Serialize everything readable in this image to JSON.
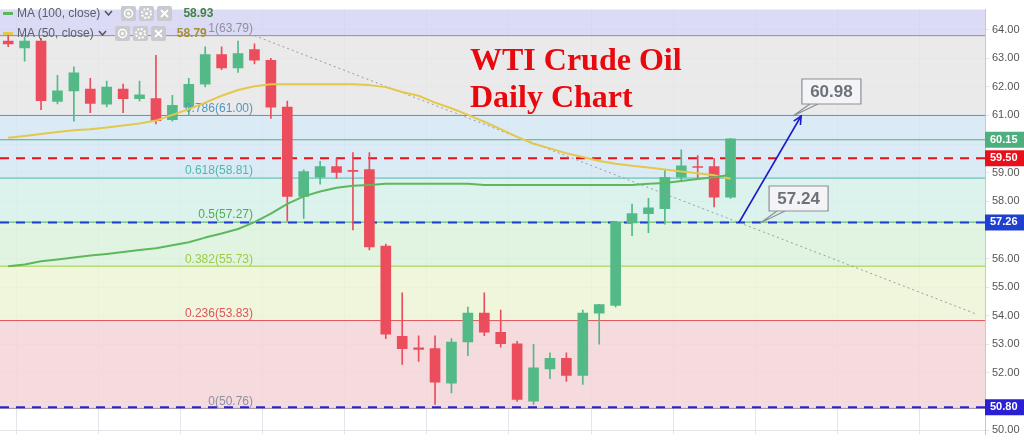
{
  "chart_data": {
    "type": "candlestick",
    "title": "WTI Crude Oil Daily Chart",
    "categories": [
      null,
      null,
      null,
      null,
      null,
      null,
      null,
      null,
      null,
      null,
      null,
      null,
      null,
      null,
      null,
      null,
      null,
      null,
      null,
      null,
      null,
      null,
      null,
      null,
      null,
      null,
      null,
      null,
      null,
      null,
      null,
      null,
      null,
      null,
      null,
      null,
      null,
      null,
      null,
      null,
      null,
      null,
      null,
      null,
      null,
      null,
      null,
      null,
      null,
      null,
      null,
      null,
      null,
      null,
      null,
      null,
      null,
      null,
      null,
      null
    ],
    "ohlc": [
      [
        63.6,
        63.9,
        63.4,
        63.5
      ],
      [
        63.36,
        63.75,
        62.9,
        63.6
      ],
      [
        63.6,
        63.7,
        61.2,
        61.52
      ],
      [
        61.49,
        62.4,
        61.4,
        61.86
      ],
      [
        61.86,
        62.7,
        60.8,
        62.49
      ],
      [
        61.92,
        62.3,
        61.1,
        61.42
      ],
      [
        61.39,
        62.2,
        61.3,
        61.99
      ],
      [
        61.92,
        62.1,
        61.1,
        61.59
      ],
      [
        61.59,
        62.2,
        61.5,
        61.72
      ],
      [
        61.59,
        63.1,
        60.7,
        60.82
      ],
      [
        60.85,
        61.7,
        60.8,
        61.35
      ],
      [
        61.29,
        62.3,
        61.0,
        62.09
      ],
      [
        62.09,
        63.4,
        62.0,
        63.13
      ],
      [
        63.13,
        63.4,
        62.6,
        62.66
      ],
      [
        62.66,
        63.6,
        62.5,
        63.16
      ],
      [
        63.3,
        63.5,
        62.8,
        62.93
      ],
      [
        62.93,
        63.0,
        60.9,
        61.29
      ],
      [
        61.29,
        61.5,
        57.3,
        58.17
      ],
      [
        58.17,
        59.1,
        57.4,
        59.04
      ],
      [
        58.84,
        59.4,
        58.6,
        59.21
      ],
      [
        59.21,
        59.5,
        58.8,
        59.01
      ],
      [
        59.08,
        59.7,
        57.0,
        59.04
      ],
      [
        59.11,
        59.7,
        56.3,
        56.4
      ],
      [
        56.43,
        56.5,
        53.2,
        53.35
      ],
      [
        53.28,
        54.8,
        52.3,
        52.85
      ],
      [
        52.88,
        53.3,
        52.4,
        52.82
      ],
      [
        52.85,
        53.3,
        50.9,
        51.68
      ],
      [
        51.64,
        53.2,
        51.3,
        53.08
      ],
      [
        53.08,
        54.3,
        52.6,
        54.09
      ],
      [
        54.09,
        54.8,
        53.3,
        53.42
      ],
      [
        53.42,
        54.2,
        52.9,
        53.02
      ],
      [
        53.02,
        53.1,
        51.0,
        51.07
      ],
      [
        51.01,
        53.0,
        50.9,
        52.18
      ],
      [
        52.14,
        52.7,
        51.8,
        52.51
      ],
      [
        52.51,
        52.7,
        51.7,
        51.91
      ],
      [
        51.91,
        54.2,
        51.6,
        54.09
      ],
      [
        54.09,
        54.4,
        53.0,
        54.39
      ],
      [
        54.36,
        57.3,
        54.3,
        57.27
      ],
      [
        57.24,
        57.9,
        56.8,
        57.57
      ],
      [
        57.57,
        58.1,
        56.9,
        57.77
      ],
      [
        57.74,
        59.1,
        57.2,
        58.84
      ],
      [
        58.84,
        59.8,
        58.7,
        59.24
      ],
      [
        59.21,
        59.6,
        58.8,
        59.18
      ],
      [
        59.21,
        59.5,
        57.8,
        58.14
      ],
      [
        58.14,
        60.2,
        58.1,
        60.18
      ],
      null,
      null,
      null,
      null,
      null,
      null,
      null,
      null,
      null,
      null,
      null,
      null,
      null,
      null,
      null
    ],
    "colors": [
      "#eb4d5c",
      "#53b987",
      "#eb4d5c",
      "#53b987",
      "#53b987",
      "#eb4d5c",
      "#53b987",
      "#eb4d5c",
      "#53b987",
      "#eb4d5c",
      "#53b987",
      "#53b987",
      "#53b987",
      "#eb4d5c",
      "#53b987",
      "#eb4d5c",
      "#eb4d5c",
      "#eb4d5c",
      "#53b987",
      "#53b987",
      "#eb4d5c",
      "#eb4d5c",
      "#eb4d5c",
      "#eb4d5c",
      "#eb4d5c",
      "#eb4d5c",
      "#eb4d5c",
      "#53b987",
      "#53b987",
      "#eb4d5c",
      "#eb4d5c",
      "#eb4d5c",
      "#53b987",
      "#53b987",
      "#eb4d5c",
      "#53b987",
      "#53b987",
      "#53b987",
      "#53b987",
      "#53b987",
      "#53b987",
      "#53b987",
      "#eb4d5c",
      "#eb4d5c",
      "#53b987",
      null,
      null,
      null,
      null,
      null,
      null,
      null,
      null,
      null,
      null,
      null,
      null,
      null,
      null,
      null
    ],
    "series": [
      {
        "name": "MA (100, close)",
        "type": "line",
        "color": "#5cb85c",
        "values": [
          55.73,
          55.79,
          55.9,
          55.96,
          56.03,
          56.1,
          56.16,
          56.23,
          56.3,
          56.36,
          56.46,
          56.57,
          56.73,
          56.87,
          57.03,
          57.27,
          57.57,
          57.91,
          58.17,
          58.34,
          58.47,
          58.54,
          58.57,
          58.61,
          58.61,
          58.61,
          58.61,
          58.61,
          58.61,
          58.57,
          58.57,
          58.57,
          58.57,
          58.57,
          58.57,
          58.57,
          58.57,
          58.57,
          58.57,
          58.61,
          58.64,
          58.71,
          58.78,
          58.84,
          58.93,
          null,
          null,
          null,
          null,
          null,
          null,
          null,
          null,
          null,
          null,
          null,
          null,
          null,
          null,
          null
        ]
      },
      {
        "name": "MA (50, close)",
        "type": "line",
        "color": "#e3c84a",
        "values": [
          60.22,
          60.28,
          60.35,
          60.42,
          60.48,
          60.52,
          60.58,
          60.65,
          60.72,
          60.82,
          61.02,
          61.22,
          61.45,
          61.69,
          61.89,
          62.02,
          62.09,
          62.09,
          62.09,
          62.09,
          62.09,
          62.09,
          62.06,
          61.99,
          61.82,
          61.69,
          61.45,
          61.25,
          61.02,
          60.78,
          60.52,
          60.25,
          60.01,
          59.85,
          59.68,
          59.55,
          59.41,
          59.31,
          59.24,
          59.18,
          59.11,
          59.04,
          58.98,
          58.91,
          58.79,
          null,
          null,
          null,
          null,
          null,
          null,
          null,
          null,
          null,
          null,
          null,
          null,
          null,
          null,
          null
        ]
      },
      {
        "type": "line",
        "color": "#9a9aa8",
        "line_style": "dotted",
        "values": [
          null,
          null,
          null,
          null,
          null,
          null,
          null,
          null,
          null,
          null,
          null,
          null,
          null,
          null,
          null,
          63.79,
          null,
          null,
          null,
          null,
          null,
          null,
          null,
          null,
          null,
          null,
          null,
          null,
          null,
          null,
          null,
          null,
          null,
          null,
          null,
          null,
          null,
          null,
          null,
          null,
          null,
          null,
          null,
          null,
          null,
          null,
          null,
          null,
          null,
          null,
          null,
          null,
          null,
          null,
          null,
          null,
          null,
          null,
          null,
          54.05
        ]
      }
    ],
    "ylim": [
      49.85,
      64.7
    ],
    "yticks": [
      {
        "value": 50,
        "label": "50.00"
      },
      {
        "value": 51,
        "label": null
      },
      {
        "value": 52,
        "label": "52.00"
      },
      {
        "value": 53,
        "label": "53.00"
      },
      {
        "value": 54,
        "label": "54.00"
      },
      {
        "value": 55,
        "label": "55.00"
      },
      {
        "value": 56,
        "label": "56.00"
      },
      {
        "value": 57,
        "label": null
      },
      {
        "value": 58,
        "label": "58.00"
      },
      {
        "value": 59,
        "label": "59.00"
      },
      {
        "value": 60,
        "label": null
      },
      {
        "value": 61,
        "label": "61.00"
      },
      {
        "value": 62,
        "label": "62.00"
      },
      {
        "value": 63,
        "label": "63.00"
      },
      {
        "value": 64,
        "label": "64.00"
      }
    ],
    "grid": true,
    "legend": "top left",
    "tick_labels": "y",
    "bands": [
      {
        "axis": "y",
        "from": 63.79,
        "to": 64.7,
        "color": "#d6d5f4"
      },
      {
        "axis": "y",
        "from": 61.0,
        "to": 63.79,
        "color": "#e6e6e8"
      },
      {
        "axis": "y",
        "from": 58.81,
        "to": 61.0,
        "color": "#d4e8f5"
      },
      {
        "axis": "y",
        "from": 57.27,
        "to": 58.81,
        "color": "#d6f1ea"
      },
      {
        "axis": "y",
        "from": 55.73,
        "to": 57.27,
        "color": "#dcf2dc"
      },
      {
        "axis": "y",
        "from": 53.83,
        "to": 55.73,
        "color": "#ecf4d6"
      },
      {
        "axis": "y",
        "from": 50.76,
        "to": 53.83,
        "color": "#f4d5d8"
      }
    ],
    "ref_lines": [
      {
        "axis": "y",
        "value": 63.79,
        "label": "1(63.79)",
        "color": "#8f8fa0"
      },
      {
        "axis": "y",
        "value": 61.0,
        "label": "0.786(61.00)",
        "color": "#4f97c4"
      },
      {
        "axis": "y",
        "value": 58.81,
        "label": "0.618(58.81)",
        "color": "#4fb8ad"
      },
      {
        "axis": "y",
        "value": 57.27,
        "label": "0.5(57.27)",
        "color": "#4caf50"
      },
      {
        "axis": "y",
        "value": 55.73,
        "label": "0.382(55.73)",
        "color": "#9ccc45"
      },
      {
        "axis": "y",
        "value": 53.83,
        "label": "0.236(53.83)",
        "color": "#e0555c"
      },
      {
        "axis": "y",
        "value": 50.76,
        "label": "0(50.76)",
        "color": "#8f8fa0"
      },
      {
        "axis": "y",
        "value": 60.15,
        "label": "60.15",
        "color": "#4caf7d",
        "line_style": "solid"
      },
      {
        "axis": "y",
        "value": 59.5,
        "label": "59.50",
        "color": "#e8111b",
        "line_style": "dashed"
      },
      {
        "axis": "y",
        "value": 57.26,
        "label": "57.26",
        "color": "#1f3fd0",
        "line_style": "dashed"
      },
      {
        "axis": "y",
        "value": 50.8,
        "label": "50.80",
        "color": "#2b1fd6",
        "line_style": "dashed"
      }
    ],
    "annotations": [
      {
        "text": "60.98",
        "y": 60.98
      },
      {
        "text": "57.24",
        "y": 57.24
      },
      "58.93",
      "58.79"
    ]
  }
}
